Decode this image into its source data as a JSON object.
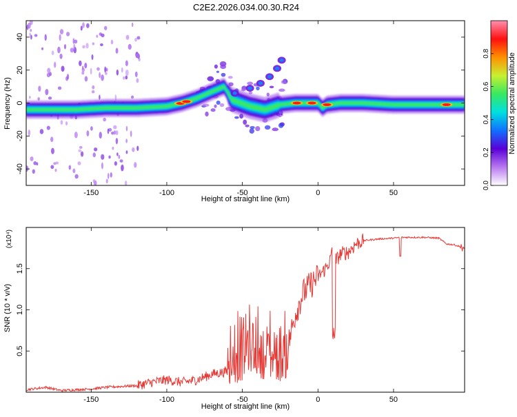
{
  "figure_title": "C2E2.2026.034.00.30.R24",
  "colors": {
    "axis": "#000000",
    "snr_line": "#e53935",
    "background": "#ffffff"
  },
  "chart_data": [
    {
      "type": "heatmap",
      "title": "C2E2.2026.034.00.30.R24",
      "xlabel": "Height of straight line (km)",
      "ylabel": "Frequency (Hz)",
      "xlim": [
        -193,
        97
      ],
      "ylim": [
        -50,
        50
      ],
      "x_ticks": [
        -150,
        -100,
        -50,
        0,
        50
      ],
      "y_ticks": [
        -40,
        -20,
        0,
        20,
        40
      ],
      "colorbar": {
        "label": "Normalized spectral amplitude",
        "range": [
          0,
          1
        ],
        "ticks": [
          0.0,
          0.2,
          0.4,
          0.6,
          0.8
        ],
        "tick_labels": [
          "0.0",
          "0.2",
          "0.4",
          "0.6",
          "0.8"
        ],
        "colormap": [
          "#ffffff",
          "#b878f0",
          "#5a00d8",
          "#1070ff",
          "#00e0e0",
          "#38e860",
          "#c8f030",
          "#ff9000",
          "#ff1010",
          "#ff90b0"
        ]
      },
      "ridge_center_frequency": [
        [
          -193,
          -4
        ],
        [
          -180,
          -4
        ],
        [
          -160,
          -4
        ],
        [
          -140,
          -3
        ],
        [
          -120,
          -3
        ],
        [
          -100,
          -2
        ],
        [
          -90,
          0
        ],
        [
          -80,
          3
        ],
        [
          -70,
          7
        ],
        [
          -62,
          10
        ],
        [
          -57,
          2
        ],
        [
          -45,
          -2
        ],
        [
          -35,
          -4
        ],
        [
          -25,
          -1
        ],
        [
          -15,
          0
        ],
        [
          -5,
          0
        ],
        [
          0,
          0
        ],
        [
          3,
          -3
        ],
        [
          6,
          -1
        ],
        [
          15,
          0
        ],
        [
          30,
          0
        ],
        [
          50,
          -1
        ],
        [
          70,
          -1
        ],
        [
          97,
          -1
        ]
      ],
      "secondary_branch": [
        [
          -55,
          6
        ],
        [
          -45,
          9
        ],
        [
          -38,
          12
        ],
        [
          -32,
          16
        ],
        [
          -27,
          21
        ],
        [
          -24,
          26
        ]
      ],
      "peak_regions_x": [
        -91,
        -87,
        -14,
        -4,
        6,
        85
      ]
    },
    {
      "type": "line",
      "title": "",
      "xlabel": "Height of straight line (km)",
      "ylabel": "SNR (10 * v/v)",
      "scale_label": "(x10⁴)",
      "xlim": [
        -193,
        97
      ],
      "ylim": [
        0,
        2
      ],
      "x_ticks": [
        -150,
        -100,
        -50,
        0,
        50
      ],
      "y_ticks": [
        0.5,
        1.0,
        1.5
      ],
      "y_tick_labels": [
        "0.5",
        "1.0",
        "1.5"
      ],
      "series": [
        {
          "name": "SNR",
          "x": [
            -193,
            -180,
            -170,
            -160,
            -150,
            -140,
            -130,
            -120,
            -110,
            -100,
            -90,
            -80,
            -70,
            -60,
            -55,
            -50,
            -45,
            -40,
            -35,
            -30,
            -25,
            -20,
            -15,
            -10,
            -5,
            0,
            5,
            8,
            10,
            12,
            15,
            20,
            25,
            30,
            40,
            50,
            55,
            60,
            70,
            80,
            85,
            90,
            97
          ],
          "y": [
            0.03,
            0.06,
            0.02,
            0.03,
            0.04,
            0.06,
            0.07,
            0.08,
            0.12,
            0.15,
            0.12,
            0.15,
            0.22,
            0.25,
            0.3,
            0.45,
            0.8,
            0.6,
            0.5,
            0.45,
            0.4,
            0.55,
            0.95,
            1.2,
            1.3,
            1.4,
            1.5,
            1.6,
            1.75,
            1.6,
            1.68,
            1.7,
            1.8,
            1.84,
            1.86,
            1.87,
            1.88,
            1.88,
            1.88,
            1.87,
            1.8,
            1.79,
            1.75
          ]
        }
      ]
    }
  ]
}
